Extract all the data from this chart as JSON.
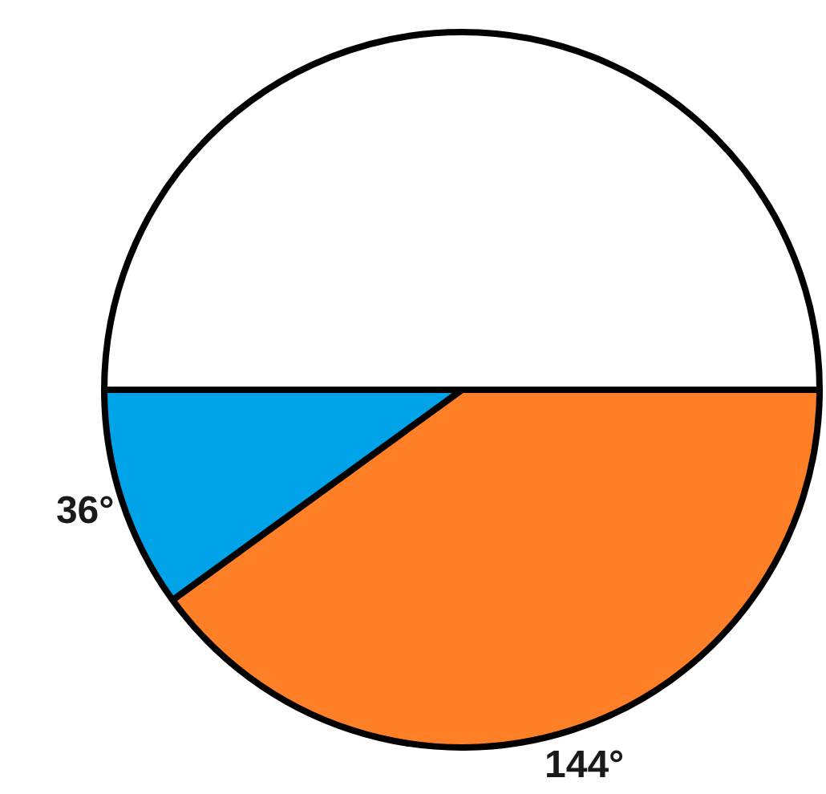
{
  "chart_data": {
    "type": "pie",
    "categories": [
      null,
      null,
      null
    ],
    "values": [
      144,
      36,
      180
    ],
    "colors": [
      "#ff7f27",
      "#00a2e8",
      "#ffffff"
    ],
    "value_labels": [
      "144°",
      "36°",
      null
    ],
    "legend": false
  }
}
